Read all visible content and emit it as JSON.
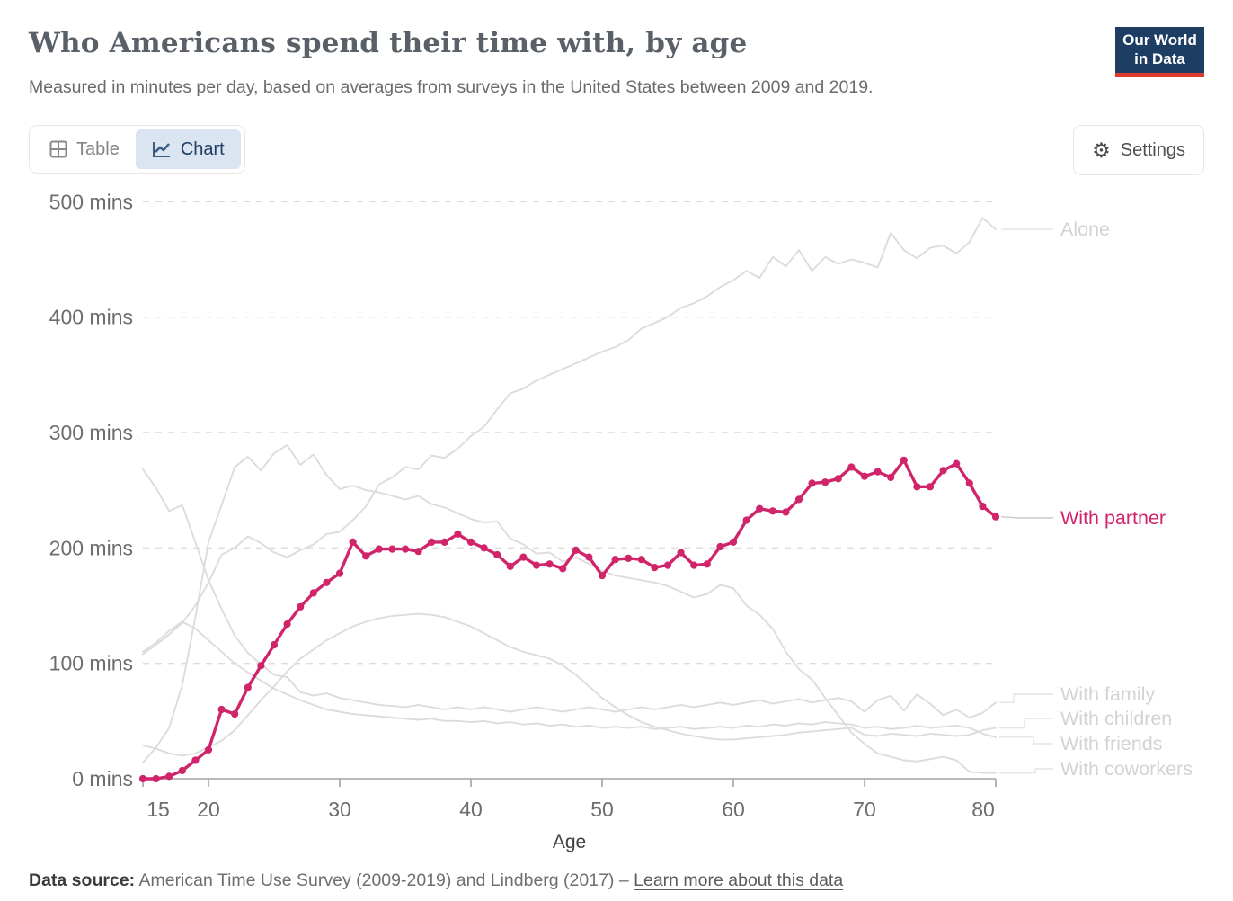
{
  "header": {
    "title": "Who Americans spend their time with, by age",
    "subtitle": "Measured in minutes per day, based on averages from surveys in the United States between 2009 and 2019.",
    "logo": {
      "line1": "Our World",
      "line2": "in Data"
    }
  },
  "toolbar": {
    "table_label": "Table",
    "chart_label": "Chart",
    "settings_label": "Settings"
  },
  "colors": {
    "highlight": "#d0246b",
    "muted_line": "#dcdcdc",
    "muted_label": "#d3d3d3",
    "axis": "#a3a3a3",
    "tick_label": "#6d6d6d",
    "logo_bg": "#1d3d63",
    "logo_red": "#dc3a2f",
    "active_tab_bg": "#dbe4f1",
    "active_tab_text": "#1d3d63"
  },
  "chart_data": {
    "type": "line",
    "title": "Who Americans spend their time with, by age",
    "xlabel": "Age",
    "ylabel": "",
    "xlim": [
      15,
      80
    ],
    "ylim": [
      0,
      500
    ],
    "grid": "horizontal dashed",
    "legend_position": "right edge line labels",
    "y_ticks": [
      0,
      100,
      200,
      300,
      400,
      500
    ],
    "y_tick_labels": [
      "0 mins",
      "100 mins",
      "200 mins",
      "300 mins",
      "400 mins",
      "500 mins"
    ],
    "x_ticks": [
      15,
      20,
      30,
      40,
      50,
      60,
      70,
      80
    ],
    "x_tick_labels": [
      "15",
      "20",
      "30",
      "40",
      "50",
      "60",
      "70",
      "80"
    ],
    "x": [
      15,
      16,
      17,
      18,
      19,
      20,
      21,
      22,
      23,
      24,
      25,
      26,
      27,
      28,
      29,
      30,
      31,
      32,
      33,
      34,
      35,
      36,
      37,
      38,
      39,
      40,
      41,
      42,
      43,
      44,
      45,
      46,
      47,
      48,
      49,
      50,
      51,
      52,
      53,
      54,
      55,
      56,
      57,
      58,
      59,
      60,
      61,
      62,
      63,
      64,
      65,
      66,
      67,
      68,
      69,
      70,
      71,
      72,
      73,
      74,
      75,
      76,
      77,
      78,
      79,
      80
    ],
    "series": [
      {
        "name": "Alone",
        "highlighted": false,
        "markers": false,
        "values": [
          108,
          116,
          125,
          135,
          150,
          170,
          194,
          200,
          210,
          204,
          196,
          192,
          198,
          203,
          212,
          214,
          224,
          236,
          255,
          261,
          270,
          268,
          280,
          278,
          286,
          297,
          305,
          320,
          334,
          338,
          345,
          350,
          355,
          360,
          365,
          370,
          374,
          380,
          390,
          395,
          400,
          408,
          412,
          418,
          426,
          432,
          440,
          434,
          452,
          444,
          458,
          440,
          452,
          446,
          450,
          447,
          443,
          473,
          458,
          451,
          460,
          462,
          455,
          465,
          486,
          476
        ]
      },
      {
        "name": "With partner",
        "highlighted": true,
        "markers": true,
        "values": [
          0,
          0,
          2,
          7,
          16,
          25,
          60,
          56,
          79,
          98,
          116,
          134,
          149,
          161,
          170,
          178,
          205,
          193,
          199,
          199,
          199,
          197,
          205,
          205,
          212,
          205,
          200,
          194,
          184,
          192,
          185,
          186,
          182,
          198,
          192,
          176,
          190,
          191,
          190,
          183,
          185,
          196,
          185,
          186,
          201,
          205,
          224,
          234,
          232,
          231,
          242,
          256,
          257,
          260,
          270,
          262,
          266,
          261,
          276,
          253,
          253,
          267,
          273,
          256,
          236,
          227
        ]
      },
      {
        "name": "With family",
        "highlighted": false,
        "markers": false,
        "values": [
          268,
          252,
          232,
          237,
          205,
          172,
          147,
          124,
          109,
          99,
          90,
          88,
          75,
          72,
          74,
          70,
          68,
          66,
          64,
          63,
          62,
          64,
          62,
          60,
          62,
          60,
          62,
          60,
          58,
          60,
          62,
          60,
          58,
          60,
          62,
          60,
          58,
          60,
          62,
          60,
          62,
          64,
          62,
          64,
          66,
          64,
          66,
          68,
          65,
          67,
          69,
          66,
          68,
          70,
          67,
          58,
          68,
          72,
          59,
          73,
          65,
          55,
          60,
          53,
          57,
          66
        ]
      },
      {
        "name": "With children",
        "highlighted": false,
        "markers": false,
        "values": [
          29,
          26,
          22,
          20,
          22,
          27,
          33,
          42,
          55,
          68,
          80,
          93,
          104,
          112,
          120,
          126,
          132,
          136,
          139,
          141,
          142,
          143,
          142,
          140,
          136,
          132,
          126,
          120,
          114,
          110,
          107,
          104,
          98,
          90,
          80,
          70,
          62,
          55,
          49,
          45,
          42,
          39,
          37,
          35,
          34,
          34,
          35,
          36,
          37,
          38,
          40,
          41,
          42,
          43,
          44,
          38,
          37,
          39,
          38,
          37,
          39,
          38,
          37,
          38,
          42,
          44
        ]
      },
      {
        "name": "With friends",
        "highlighted": false,
        "markers": false,
        "values": [
          110,
          118,
          128,
          136,
          130,
          120,
          110,
          100,
          92,
          85,
          78,
          73,
          68,
          64,
          60,
          58,
          56,
          55,
          54,
          53,
          52,
          51,
          52,
          50,
          50,
          49,
          50,
          48,
          49,
          47,
          48,
          46,
          47,
          45,
          46,
          44,
          45,
          44,
          45,
          43,
          44,
          45,
          43,
          44,
          45,
          44,
          46,
          45,
          47,
          46,
          48,
          47,
          49,
          48,
          47,
          44,
          45,
          43,
          44,
          46,
          44,
          45,
          46,
          44,
          39,
          36
        ]
      },
      {
        "name": "With coworkers",
        "highlighted": false,
        "markers": false,
        "values": [
          14,
          27,
          44,
          81,
          140,
          205,
          237,
          270,
          279,
          267,
          282,
          289,
          272,
          281,
          263,
          251,
          254,
          250,
          248,
          245,
          242,
          245,
          238,
          235,
          230,
          225,
          222,
          223,
          208,
          203,
          195,
          196,
          188,
          192,
          186,
          180,
          176,
          174,
          172,
          170,
          167,
          162,
          157,
          160,
          168,
          165,
          150,
          142,
          130,
          110,
          95,
          86,
          70,
          55,
          40,
          30,
          22,
          19,
          16,
          15,
          17,
          19,
          16,
          6,
          5,
          5
        ]
      }
    ]
  },
  "footer": {
    "datasource_label": "Data source:",
    "datasource_text": "American Time Use Survey (2009-2019) and Lindberg (2017)",
    "separator": "–",
    "link_text": "Learn more about this data"
  }
}
